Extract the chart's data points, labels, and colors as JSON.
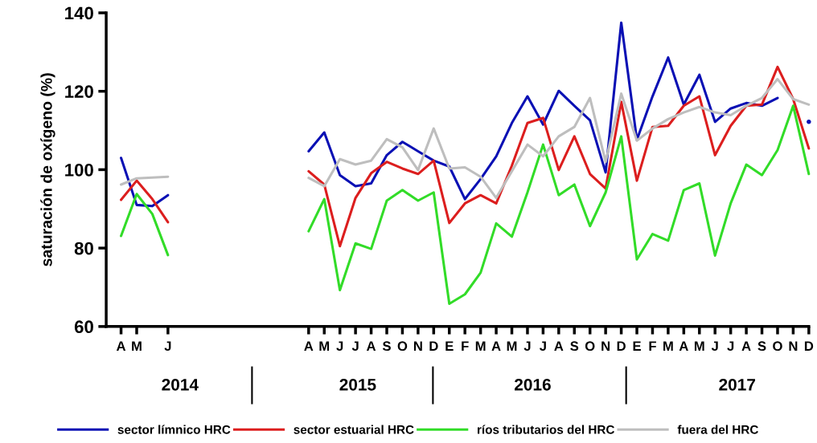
{
  "chart_data": {
    "type": "line",
    "ylabel": "saturación de oxígeno (%)",
    "categories": [
      "A",
      "M",
      null,
      "J",
      null,
      null,
      null,
      null,
      null,
      null,
      null,
      null,
      "A",
      "M",
      "J",
      "J",
      "A",
      "S",
      "O",
      "N",
      "D",
      "E",
      "F",
      "M",
      "A",
      "M",
      "J",
      "J",
      "A",
      "S",
      "O",
      "N",
      "D",
      "E",
      "F",
      "M",
      "A",
      "M",
      "J",
      "J",
      "A",
      "S",
      "O",
      "N",
      "D"
    ],
    "series": [
      {
        "name": "sector límnico HRC",
        "color": "#0a10b4",
        "values": [
          103,
          91,
          90.7,
          93.5,
          null,
          null,
          null,
          null,
          null,
          null,
          null,
          null,
          104.7,
          109.5,
          98.6,
          95.8,
          96.5,
          103.7,
          107.1,
          104.7,
          102.3,
          100.8,
          92.5,
          97.6,
          103.4,
          111.9,
          118.7,
          111.5,
          120.1,
          116.3,
          112.6,
          99.3,
          137.5,
          107.6,
          118.7,
          128.6,
          116.6,
          124.2,
          112.2,
          115.6,
          117,
          116.3,
          118.3,
          null,
          112.2
        ]
      },
      {
        "name": "sector estuarial HRC",
        "color": "#dc1e1e",
        "values": [
          92.3,
          97.2,
          92.5,
          86.6,
          null,
          null,
          null,
          null,
          null,
          null,
          null,
          null,
          99.6,
          96.2,
          80.5,
          92.8,
          99.1,
          102,
          100.3,
          98.9,
          102.3,
          86.4,
          91.4,
          93.5,
          91.4,
          101,
          111.9,
          113.2,
          99.9,
          108.5,
          98.9,
          95.2,
          117.3,
          97.2,
          110.9,
          111.2,
          116.3,
          118.7,
          103.7,
          111.2,
          116.3,
          116.6,
          126.2,
          118,
          105.4
        ]
      },
      {
        "name": "ríos tributarios del HRC",
        "color": "#32dc28",
        "values": [
          83.1,
          93.8,
          88.7,
          78.2,
          null,
          null,
          null,
          null,
          null,
          null,
          null,
          null,
          84.3,
          92.5,
          69.3,
          81.2,
          79.8,
          92.1,
          94.8,
          92.1,
          94.2,
          65.8,
          68.2,
          73.7,
          86.3,
          82.9,
          94.2,
          106.4,
          93.5,
          96.2,
          85.6,
          94.2,
          108.5,
          77.1,
          83.6,
          81.9,
          94.8,
          96.5,
          78.1,
          91.4,
          101.3,
          98.6,
          105,
          116.3,
          98.9
        ]
      },
      {
        "name": "fuera del HRC",
        "color": "#bebebe",
        "values": [
          96.2,
          97.8,
          98,
          98.2,
          null,
          null,
          null,
          null,
          null,
          null,
          null,
          null,
          97.9,
          95.8,
          102.7,
          101.3,
          102.3,
          107.8,
          105.7,
          99.9,
          110.5,
          100.3,
          100.6,
          98.2,
          92.8,
          99.6,
          106.4,
          103.4,
          108.5,
          110.9,
          118.3,
          102,
          119.4,
          107.4,
          110.5,
          112.9,
          114.6,
          116,
          114.6,
          113.9,
          116.3,
          118.3,
          123.1,
          118,
          116.6
        ]
      }
    ],
    "ylim": [
      60,
      140
    ],
    "yticks": [
      60,
      80,
      100,
      120,
      140
    ],
    "annotations": [
      "2014",
      "2015",
      "2016",
      "2017"
    ],
    "grid": false,
    "legend": "bottom",
    "marker": "none",
    "line_style": "solid"
  }
}
